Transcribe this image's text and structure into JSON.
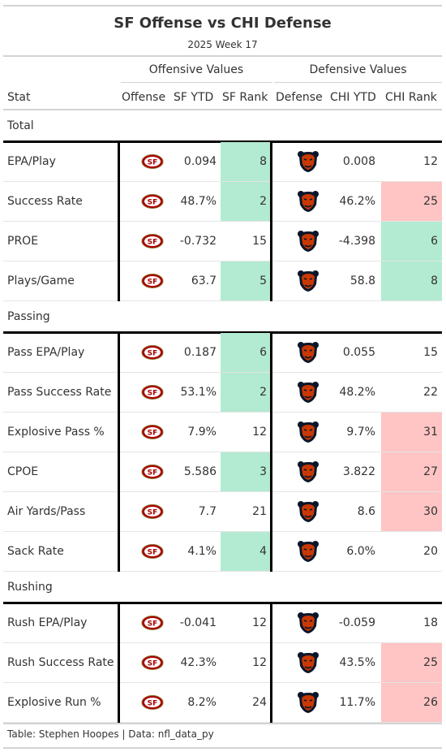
{
  "title": "SF Offense vs CHI Defense",
  "subtitle": "2025 Week 17",
  "spanners": {
    "offense": "Offensive Values",
    "defense": "Defensive Values"
  },
  "columns": [
    "Stat",
    "Offense",
    "SF YTD",
    "SF Rank",
    "Defense",
    "CHI YTD",
    "CHI Rank"
  ],
  "colors": {
    "green": "#b2ebd1",
    "red": "#ffc4c4",
    "sf_red": "#aa0000",
    "chi_orange": "#c83803",
    "chi_navy": "#0b162a"
  },
  "icons": {
    "offense": "49ers-logo-icon",
    "defense": "bears-logo-icon"
  },
  "groups": [
    {
      "label": "Total",
      "rows": [
        {
          "stat": "EPA/Play",
          "sf_ytd": "0.094",
          "sf_rank": "8",
          "sf_hl": "green",
          "chi_ytd": "0.008",
          "chi_rank": "12",
          "chi_hl": ""
        },
        {
          "stat": "Success Rate",
          "sf_ytd": "48.7%",
          "sf_rank": "2",
          "sf_hl": "green",
          "chi_ytd": "46.2%",
          "chi_rank": "25",
          "chi_hl": "red"
        },
        {
          "stat": "PROE",
          "sf_ytd": "-0.732",
          "sf_rank": "15",
          "sf_hl": "",
          "chi_ytd": "-4.398",
          "chi_rank": "6",
          "chi_hl": "green"
        },
        {
          "stat": "Plays/Game",
          "sf_ytd": "63.7",
          "sf_rank": "5",
          "sf_hl": "green",
          "chi_ytd": "58.8",
          "chi_rank": "8",
          "chi_hl": "green"
        }
      ]
    },
    {
      "label": "Passing",
      "rows": [
        {
          "stat": "Pass EPA/Play",
          "sf_ytd": "0.187",
          "sf_rank": "6",
          "sf_hl": "green",
          "chi_ytd": "0.055",
          "chi_rank": "15",
          "chi_hl": ""
        },
        {
          "stat": "Pass Success Rate",
          "sf_ytd": "53.1%",
          "sf_rank": "2",
          "sf_hl": "green",
          "chi_ytd": "48.2%",
          "chi_rank": "22",
          "chi_hl": ""
        },
        {
          "stat": "Explosive Pass %",
          "sf_ytd": "7.9%",
          "sf_rank": "12",
          "sf_hl": "",
          "chi_ytd": "9.7%",
          "chi_rank": "31",
          "chi_hl": "red"
        },
        {
          "stat": "CPOE",
          "sf_ytd": "5.586",
          "sf_rank": "3",
          "sf_hl": "green",
          "chi_ytd": "3.822",
          "chi_rank": "27",
          "chi_hl": "red"
        },
        {
          "stat": "Air Yards/Pass",
          "sf_ytd": "7.7",
          "sf_rank": "21",
          "sf_hl": "",
          "chi_ytd": "8.6",
          "chi_rank": "30",
          "chi_hl": "red"
        },
        {
          "stat": "Sack Rate",
          "sf_ytd": "4.1%",
          "sf_rank": "4",
          "sf_hl": "green",
          "chi_ytd": "6.0%",
          "chi_rank": "20",
          "chi_hl": ""
        }
      ]
    },
    {
      "label": "Rushing",
      "rows": [
        {
          "stat": "Rush EPA/Play",
          "sf_ytd": "-0.041",
          "sf_rank": "12",
          "sf_hl": "",
          "chi_ytd": "-0.059",
          "chi_rank": "18",
          "chi_hl": ""
        },
        {
          "stat": "Rush Success Rate",
          "sf_ytd": "42.3%",
          "sf_rank": "12",
          "sf_hl": "",
          "chi_ytd": "43.5%",
          "chi_rank": "25",
          "chi_hl": "red"
        },
        {
          "stat": "Explosive Run %",
          "sf_ytd": "8.2%",
          "sf_rank": "24",
          "sf_hl": "",
          "chi_ytd": "11.7%",
          "chi_rank": "26",
          "chi_hl": "red"
        }
      ]
    }
  ],
  "source_note": "Table: Stephen Hoopes | Data: nfl_data_py",
  "chart_data": {
    "type": "table",
    "title": "SF Offense vs CHI Defense",
    "subtitle": "2025 Week 17",
    "columns": [
      "Stat",
      "Offense",
      "SF YTD",
      "SF Rank",
      "Defense",
      "CHI YTD",
      "CHI Rank"
    ],
    "rows": [
      [
        "EPA/Play",
        "SF",
        "0.094",
        8,
        "CHI",
        "0.008",
        12
      ],
      [
        "Success Rate",
        "SF",
        "48.7%",
        2,
        "CHI",
        "46.2%",
        25
      ],
      [
        "PROE",
        "SF",
        "-0.732",
        15,
        "CHI",
        "-4.398",
        6
      ],
      [
        "Plays/Game",
        "SF",
        "63.7",
        5,
        "CHI",
        "58.8",
        8
      ],
      [
        "Pass EPA/Play",
        "SF",
        "0.187",
        6,
        "CHI",
        "0.055",
        15
      ],
      [
        "Pass Success Rate",
        "SF",
        "53.1%",
        2,
        "CHI",
        "48.2%",
        22
      ],
      [
        "Explosive Pass %",
        "SF",
        "7.9%",
        12,
        "CHI",
        "9.7%",
        31
      ],
      [
        "CPOE",
        "SF",
        "5.586",
        3,
        "CHI",
        "3.822",
        27
      ],
      [
        "Air Yards/Pass",
        "SF",
        "7.7",
        21,
        "CHI",
        "8.6",
        30
      ],
      [
        "Sack Rate",
        "SF",
        "4.1%",
        4,
        "CHI",
        "6.0%",
        20
      ],
      [
        "Rush EPA/Play",
        "SF",
        "-0.041",
        12,
        "CHI",
        "-0.059",
        18
      ],
      [
        "Rush Success Rate",
        "SF",
        "42.3%",
        12,
        "CHI",
        "43.5%",
        25
      ],
      [
        "Explosive Run %",
        "SF",
        "8.2%",
        24,
        "CHI",
        "11.7%",
        26
      ]
    ]
  }
}
